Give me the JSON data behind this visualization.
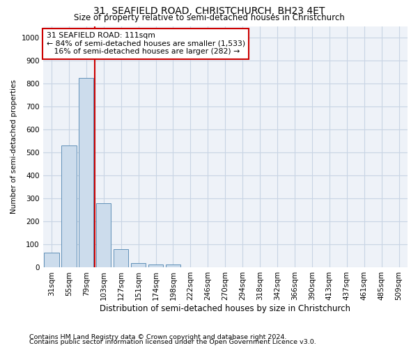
{
  "title": "31, SEAFIELD ROAD, CHRISTCHURCH, BH23 4ET",
  "subtitle": "Size of property relative to semi-detached houses in Christchurch",
  "xlabel": "Distribution of semi-detached houses by size in Christchurch",
  "ylabel": "Number of semi-detached properties",
  "footnote1": "Contains HM Land Registry data © Crown copyright and database right 2024.",
  "footnote2": "Contains public sector information licensed under the Open Government Licence v3.0.",
  "bar_labels": [
    "31sqm",
    "55sqm",
    "79sqm",
    "103sqm",
    "127sqm",
    "151sqm",
    "174sqm",
    "198sqm",
    "222sqm",
    "246sqm",
    "270sqm",
    "294sqm",
    "318sqm",
    "342sqm",
    "366sqm",
    "390sqm",
    "413sqm",
    "437sqm",
    "461sqm",
    "485sqm",
    "509sqm"
  ],
  "bar_values": [
    65,
    530,
    825,
    280,
    80,
    20,
    13,
    12,
    0,
    0,
    0,
    0,
    0,
    0,
    0,
    0,
    0,
    0,
    0,
    0,
    0
  ],
  "bar_color": "#ccdcec",
  "bar_edge_color": "#6090b8",
  "vline_index": 2.5,
  "annotation_text": "31 SEAFIELD ROAD: 111sqm\n← 84% of semi-detached houses are smaller (1,533)\n   16% of semi-detached houses are larger (282) →",
  "annotation_box_color": "#ffffff",
  "annotation_box_edge": "#cc0000",
  "annotation_fontsize": 7.8,
  "vline_color": "#cc0000",
  "grid_color": "#c8d4e4",
  "ylim": [
    0,
    1050
  ],
  "yticks": [
    0,
    100,
    200,
    300,
    400,
    500,
    600,
    700,
    800,
    900,
    1000
  ],
  "title_fontsize": 10,
  "subtitle_fontsize": 8.5,
  "xlabel_fontsize": 8.5,
  "ylabel_fontsize": 7.5,
  "tick_fontsize": 7.5,
  "footnote_fontsize": 6.8,
  "background_color": "#ffffff",
  "axes_bg_color": "#eef2f8"
}
